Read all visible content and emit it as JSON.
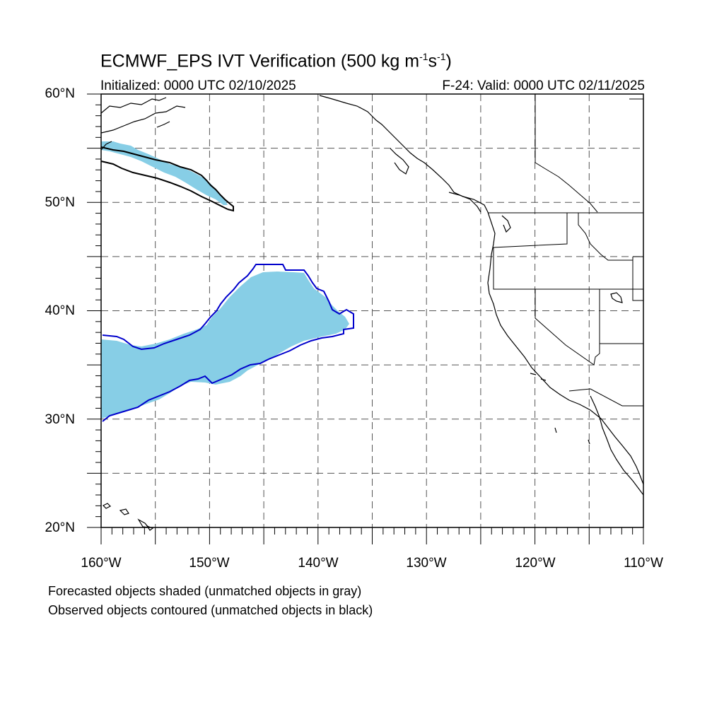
{
  "title": {
    "prefix": "ECMWF_EPS IVT Verification (500 kg m",
    "exp1": "-1",
    "mid": "s",
    "exp2": "-1",
    "suffix": ")"
  },
  "initialized": "Initialized: 0000 UTC 02/10/2025",
  "valid": "F-24: Valid: 0000 UTC 02/11/2025",
  "lat_labels": [
    "60°N",
    "50°N",
    "40°N",
    "30°N",
    "20°N"
  ],
  "lon_labels": [
    "160°W",
    "150°W",
    "140°W",
    "130°W",
    "120°W",
    "110°W"
  ],
  "notes": [
    "Forecasted objects shaded (unmatched objects in gray)",
    "Observed objects contoured (unmatched objects in black)"
  ],
  "colors": {
    "forecast_fill": "#87CEE6",
    "matched_contour": "#0000CC",
    "unmatched_contour": "#000000",
    "grid": "#555555"
  },
  "map_extent": {
    "lon_min": -160,
    "lon_max": -110,
    "lat_min": 20,
    "lat_max": 60
  }
}
